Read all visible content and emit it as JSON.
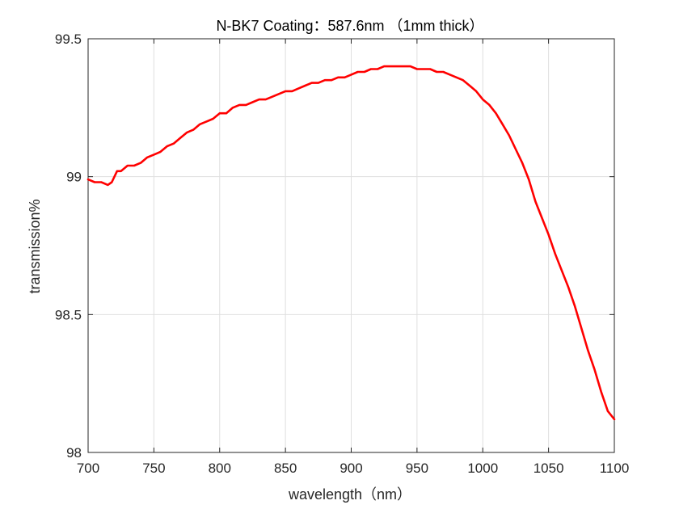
{
  "chart_data": {
    "type": "line",
    "title": "N-BK7 Coating：587.6nm （1mm thick）",
    "xlabel": "wavelength（nm）",
    "ylabel": "transmission%",
    "xlim": [
      700,
      1100
    ],
    "ylim": [
      98,
      99.5
    ],
    "x_ticks": [
      700,
      750,
      800,
      850,
      900,
      950,
      1000,
      1050,
      1100
    ],
    "x_tick_labels": [
      "700",
      "750",
      "800",
      "850",
      "900",
      "950",
      "1000",
      "1050",
      "1100"
    ],
    "y_ticks": [
      98,
      98.5,
      99,
      99.5
    ],
    "y_tick_labels": [
      "98",
      "98.5",
      "99",
      "99.5"
    ],
    "grid": true,
    "series": [
      {
        "color": "#ff0000",
        "x": [
          700,
          705,
          710,
          715,
          718,
          722,
          725,
          730,
          735,
          740,
          745,
          750,
          755,
          760,
          765,
          770,
          775,
          780,
          785,
          790,
          795,
          800,
          805,
          810,
          815,
          820,
          825,
          830,
          835,
          840,
          845,
          850,
          855,
          860,
          865,
          870,
          875,
          880,
          885,
          890,
          895,
          900,
          905,
          910,
          915,
          920,
          925,
          930,
          935,
          940,
          945,
          950,
          955,
          960,
          965,
          970,
          975,
          980,
          985,
          990,
          995,
          1000,
          1005,
          1010,
          1015,
          1020,
          1025,
          1030,
          1035,
          1040,
          1045,
          1050,
          1055,
          1060,
          1065,
          1070,
          1075,
          1080,
          1085,
          1090,
          1095,
          1100
        ],
        "y": [
          98.99,
          98.98,
          98.98,
          98.97,
          98.98,
          99.02,
          99.02,
          99.04,
          99.04,
          99.05,
          99.07,
          99.08,
          99.09,
          99.11,
          99.12,
          99.14,
          99.16,
          99.17,
          99.19,
          99.2,
          99.21,
          99.23,
          99.23,
          99.25,
          99.26,
          99.26,
          99.27,
          99.28,
          99.28,
          99.29,
          99.3,
          99.31,
          99.31,
          99.32,
          99.33,
          99.34,
          99.34,
          99.35,
          99.35,
          99.36,
          99.36,
          99.37,
          99.38,
          99.38,
          99.39,
          99.39,
          99.4,
          99.4,
          99.4,
          99.4,
          99.4,
          99.39,
          99.39,
          99.39,
          99.38,
          99.38,
          99.37,
          99.36,
          99.35,
          99.33,
          99.31,
          99.28,
          99.26,
          99.23,
          99.19,
          99.15,
          99.1,
          99.05,
          98.99,
          98.91,
          98.85,
          98.79,
          98.72,
          98.66,
          98.6,
          98.53,
          98.45,
          98.37,
          98.3,
          98.22,
          98.15,
          98.12
        ]
      }
    ]
  }
}
